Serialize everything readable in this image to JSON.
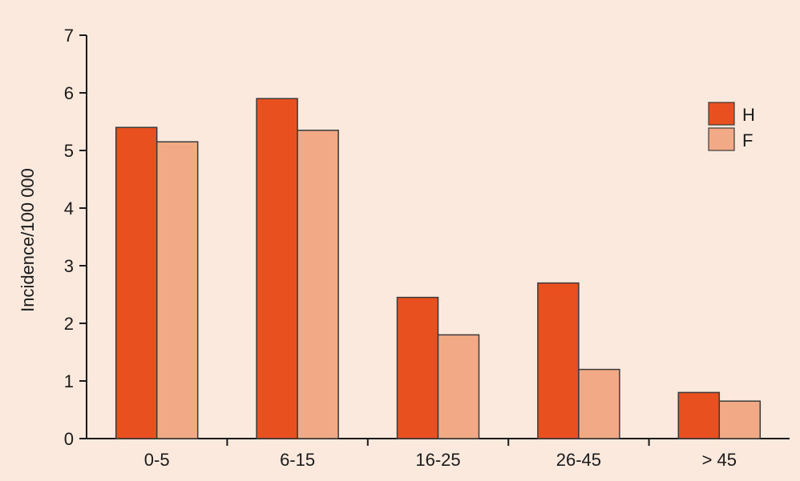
{
  "chart_data": {
    "type": "bar",
    "title": "",
    "xlabel": "",
    "ylabel": "Incidence/100 000",
    "ylim": [
      0,
      7
    ],
    "yticks": [
      0,
      1,
      2,
      3,
      4,
      5,
      6,
      7
    ],
    "categories": [
      "0-5",
      "6-15",
      "16-25",
      "26-45",
      "> 45"
    ],
    "series": [
      {
        "name": "H",
        "color": "#e8501f",
        "values": [
          5.4,
          5.9,
          2.45,
          2.7,
          0.8
        ]
      },
      {
        "name": "F",
        "color": "#f2a986",
        "values": [
          5.15,
          5.35,
          1.8,
          1.2,
          0.65
        ]
      }
    ],
    "legend_position": "top-right",
    "grid": false,
    "background_color": "#fbe9dd"
  }
}
